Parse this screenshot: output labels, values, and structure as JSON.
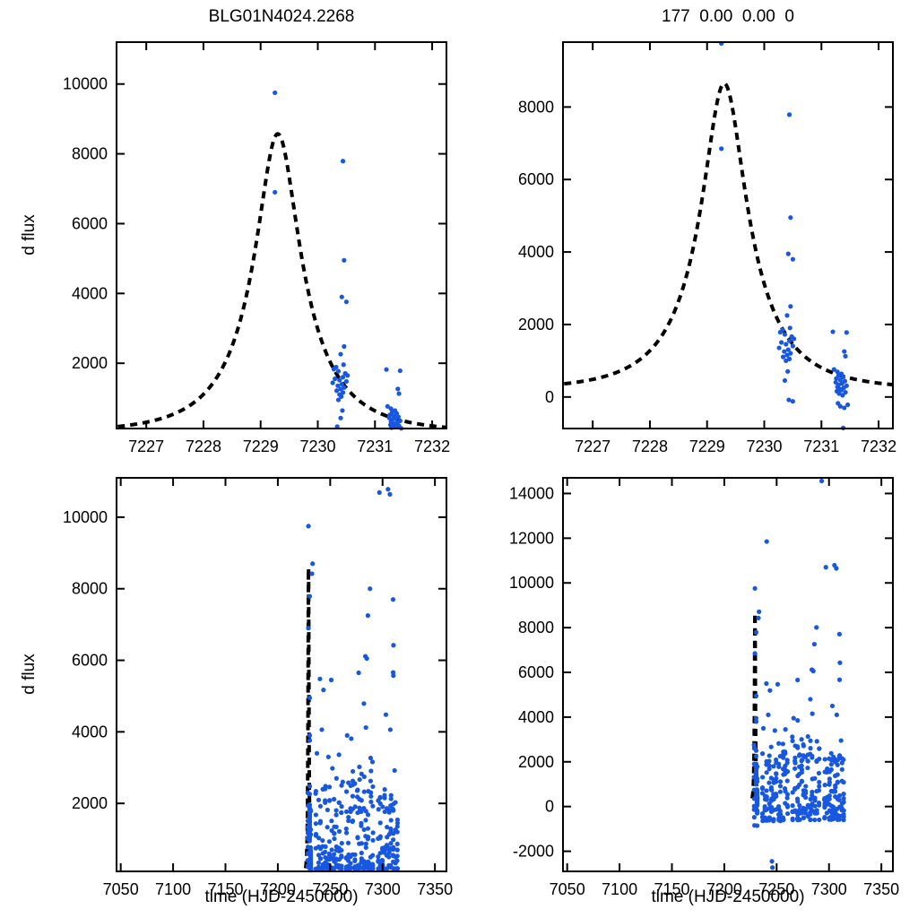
{
  "figure": {
    "background": "#ffffff",
    "titles": {
      "top_left": "BLG01N4024.2268",
      "top_right": "177  0.00  0.00  0"
    },
    "axis_labels": {
      "y": "d flux",
      "x": "time (HJD-2450000)"
    }
  },
  "chart_data": {
    "type": "scatter",
    "description": "Microlensing difference-flux light curve in a 2x2 panel figure. Top row: zoom on the event peak (HJD-2450000 ~7226.5-7232.3) with a dashed point-lens model curve peaking near 7229.3 at ~8600 d-flux. Bottom row: full season ~7046-7361; the model appears as a narrow dashed spike at ~7229. Left/right columns are two reductions of the same event.",
    "style": {
      "point_color": "#1857e0",
      "point_radius": 2.6,
      "curve_color": "#000000",
      "curve_width": 4,
      "curve_dash": "8 6",
      "frame_color": "#000000",
      "frame_width": 2,
      "tick_len": 9,
      "tick_font_size": 18
    },
    "panels": [
      {
        "id": "top-left",
        "position": "top-left",
        "x_range": [
          7226.48,
          7232.25
        ],
        "y_range": [
          130,
          11200
        ],
        "x_ticks": [
          7227,
          7228,
          7229,
          7230,
          7231,
          7232
        ],
        "y_ticks": [
          2000,
          4000,
          6000,
          8000,
          10000
        ],
        "model_curve": {
          "t0": 7229.3,
          "tE": 1.3,
          "u0": 0.3,
          "fs": 3498,
          "base": 20,
          "domain": [
            7226.5,
            7232.3
          ],
          "peak_flux": 8570
        },
        "points": [
          [
            7229.25,
            9750
          ],
          [
            7229.25,
            6900
          ],
          [
            7230.44,
            7790
          ],
          [
            7230.46,
            4950
          ],
          [
            7230.42,
            3900
          ],
          [
            7230.5,
            3760
          ],
          [
            7230.46,
            2480
          ],
          [
            7230.4,
            2260
          ],
          [
            7230.45,
            1960
          ],
          [
            7230.32,
            1890
          ],
          [
            7230.28,
            1830
          ],
          [
            7230.36,
            1770
          ],
          [
            7230.48,
            1710
          ],
          [
            7230.52,
            1650
          ],
          [
            7230.44,
            1600
          ],
          [
            7230.3,
            1555
          ],
          [
            7230.38,
            1515
          ],
          [
            7230.5,
            1480
          ],
          [
            7230.26,
            1440
          ],
          [
            7230.42,
            1400
          ],
          [
            7230.35,
            1355
          ],
          [
            7230.46,
            1305
          ],
          [
            7230.4,
            1260
          ],
          [
            7230.33,
            1215
          ],
          [
            7230.44,
            1160
          ],
          [
            7230.38,
            1105
          ],
          [
            7230.41,
            1045
          ],
          [
            7230.36,
            950
          ],
          [
            7230.43,
            645
          ],
          [
            7230.4,
            430
          ],
          [
            7230.34,
            185
          ],
          [
            7231.2,
            1820
          ],
          [
            7231.44,
            1785
          ],
          [
            7231.4,
            1265
          ],
          [
            7231.42,
            1130
          ],
          [
            7231.22,
            765
          ],
          [
            7231.28,
            700
          ],
          [
            7231.35,
            645
          ],
          [
            7231.3,
            600
          ],
          [
            7231.38,
            560
          ],
          [
            7231.26,
            520
          ],
          [
            7231.33,
            490
          ],
          [
            7231.41,
            462
          ],
          [
            7231.25,
            435
          ],
          [
            7231.36,
            408
          ],
          [
            7231.3,
            380
          ],
          [
            7231.44,
            352
          ],
          [
            7231.28,
            325
          ],
          [
            7231.39,
            300
          ],
          [
            7231.32,
            278
          ],
          [
            7231.35,
            255
          ],
          [
            7231.27,
            232
          ],
          [
            7231.42,
            210
          ],
          [
            7231.31,
            190
          ],
          [
            7231.37,
            170
          ],
          [
            7231.29,
            152
          ],
          [
            7231.46,
            135
          ]
        ],
        "clusters": []
      },
      {
        "id": "top-right",
        "position": "top-right",
        "x_range": [
          7226.48,
          7232.25
        ],
        "y_range": [
          -870,
          9790
        ],
        "x_ticks": [
          7227,
          7228,
          7229,
          7230,
          7231,
          7232
        ],
        "y_ticks": [
          0,
          2000,
          4000,
          6000,
          8000
        ],
        "model_curve": {
          "t0": 7229.3,
          "tE": 1.3,
          "u0": 0.3,
          "fs": 3457,
          "base": 200,
          "domain": [
            7226.5,
            7232.3
          ],
          "peak_flux": 8650
        },
        "points": [
          [
            7229.25,
            9755
          ],
          [
            7229.25,
            6850
          ],
          [
            7230.44,
            7790
          ],
          [
            7230.46,
            4950
          ],
          [
            7230.42,
            3950
          ],
          [
            7230.5,
            3800
          ],
          [
            7230.46,
            2500
          ],
          [
            7230.4,
            2250
          ],
          [
            7230.45,
            1905
          ],
          [
            7230.32,
            1850
          ],
          [
            7230.28,
            1785
          ],
          [
            7230.36,
            1725
          ],
          [
            7230.48,
            1665
          ],
          [
            7230.52,
            1605
          ],
          [
            7230.44,
            1550
          ],
          [
            7230.3,
            1505
          ],
          [
            7230.38,
            1455
          ],
          [
            7230.5,
            1405
          ],
          [
            7230.26,
            1355
          ],
          [
            7230.42,
            1305
          ],
          [
            7230.35,
            1255
          ],
          [
            7230.46,
            1205
          ],
          [
            7230.4,
            1155
          ],
          [
            7230.33,
            1105
          ],
          [
            7230.44,
            1050
          ],
          [
            7230.38,
            1000
          ],
          [
            7230.41,
            705
          ],
          [
            7230.36,
            455
          ],
          [
            7230.43,
            -80
          ],
          [
            7230.5,
            -120
          ],
          [
            7231.2,
            1800
          ],
          [
            7231.44,
            1780
          ],
          [
            7231.4,
            1255
          ],
          [
            7231.42,
            1125
          ],
          [
            7231.22,
            760
          ],
          [
            7231.28,
            695
          ],
          [
            7231.35,
            640
          ],
          [
            7231.3,
            592
          ],
          [
            7231.38,
            550
          ],
          [
            7231.26,
            510
          ],
          [
            7231.33,
            472
          ],
          [
            7231.41,
            438
          ],
          [
            7231.25,
            405
          ],
          [
            7231.36,
            372
          ],
          [
            7231.3,
            340
          ],
          [
            7231.44,
            310
          ],
          [
            7231.28,
            280
          ],
          [
            7231.39,
            252
          ],
          [
            7231.32,
            222
          ],
          [
            7231.35,
            192
          ],
          [
            7231.27,
            160
          ],
          [
            7231.42,
            128
          ],
          [
            7231.31,
            95
          ],
          [
            7231.37,
            48
          ],
          [
            7231.29,
            -175
          ],
          [
            7231.46,
            -215
          ],
          [
            7231.33,
            -258
          ],
          [
            7231.4,
            -300
          ],
          [
            7231.38,
            -855
          ]
        ],
        "clusters": []
      },
      {
        "id": "bottom-left",
        "position": "bottom-left",
        "x_range": [
          7046,
          7361
        ],
        "y_range": [
          100,
          11100
        ],
        "x_ticks": [
          7050,
          7100,
          7150,
          7200,
          7250,
          7300,
          7350
        ],
        "y_ticks": [
          2000,
          4000,
          6000,
          8000,
          10000
        ],
        "model_curve": {
          "t0": 7229.3,
          "tE": 1.3,
          "u0": 0.3,
          "fs": 3498,
          "base": 20,
          "domain": [
            7226.5,
            7232.3
          ],
          "peak_flux": 8570
        },
        "include_points_from": 0,
        "points": [
          [
            7232.6,
            8420
          ],
          [
            7233.2,
            8700
          ],
          [
            7237.3,
            3400
          ],
          [
            7240.2,
            5480
          ],
          [
            7242.0,
            4060
          ],
          [
            7243.6,
            5170
          ],
          [
            7248.3,
            3300
          ],
          [
            7251.0,
            5450
          ],
          [
            7252.1,
            2980
          ],
          [
            7256.0,
            2700
          ],
          [
            7258.4,
            3360
          ],
          [
            7262.0,
            2600
          ],
          [
            7266.2,
            3900
          ],
          [
            7270.1,
            3810
          ],
          [
            7277.2,
            5650
          ],
          [
            7282.2,
            4790
          ],
          [
            7283.6,
            6110
          ],
          [
            7284.1,
            4120
          ],
          [
            7285.0,
            6050
          ],
          [
            7286.0,
            7250
          ],
          [
            7288.0,
            8000
          ],
          [
            7288.6,
            3270
          ],
          [
            7290.4,
            3160
          ],
          [
            7297.0,
            10690
          ],
          [
            7303.2,
            4480
          ],
          [
            7305.2,
            10780
          ],
          [
            7307.0,
            10640
          ],
          [
            7307.4,
            4060
          ],
          [
            7310.0,
            7700
          ],
          [
            7310.4,
            6420
          ],
          [
            7310.1,
            5660
          ],
          [
            7310.3,
            5570
          ],
          [
            7311.5,
            2920
          ]
        ],
        "clusters": [
          {
            "seed": 11,
            "t0": 7228.7,
            "t1": 7228.7,
            "nights": 1,
            "per_night": 12,
            "y0": 180,
            "y1": 3150,
            "skew": 2.0
          },
          {
            "seed": 12,
            "t0": 7236.5,
            "t1": 7260.5,
            "nights": 12,
            "per_night": 8,
            "y0": 170,
            "y1": 2650,
            "skew": 2.2
          },
          {
            "seed": 13,
            "t0": 7265.5,
            "t1": 7290.5,
            "nights": 13,
            "per_night": 8,
            "y0": 170,
            "y1": 3100,
            "skew": 2.2
          },
          {
            "seed": 14,
            "t0": 7296.0,
            "t1": 7314.0,
            "nights": 10,
            "per_night": 8,
            "y0": 170,
            "y1": 2400,
            "skew": 2.2
          }
        ]
      },
      {
        "id": "bottom-right",
        "position": "bottom-right",
        "x_range": [
          7046,
          7361
        ],
        "y_range": [
          -2900,
          14700
        ],
        "x_ticks": [
          7050,
          7100,
          7150,
          7200,
          7250,
          7300,
          7350
        ],
        "y_ticks": [
          -2000,
          0,
          2000,
          4000,
          6000,
          8000,
          10000,
          12000,
          14000
        ],
        "model_curve": {
          "t0": 7229.3,
          "tE": 1.3,
          "u0": 0.3,
          "fs": 3457,
          "base": 200,
          "domain": [
            7226.5,
            7232.3
          ],
          "peak_flux": 8650
        },
        "include_points_from": 1,
        "points": [
          [
            7232.6,
            8430
          ],
          [
            7233.2,
            8710
          ],
          [
            7237.3,
            3500
          ],
          [
            7240.5,
            11850
          ],
          [
            7240.2,
            5500
          ],
          [
            7242.0,
            4100
          ],
          [
            7243.6,
            5190
          ],
          [
            7245.5,
            -2450
          ],
          [
            7246.0,
            -2730
          ],
          [
            7248.3,
            3400
          ],
          [
            7251.0,
            5470
          ],
          [
            7256.0,
            2800
          ],
          [
            7258.4,
            3450
          ],
          [
            7266.2,
            3950
          ],
          [
            7270.0,
            5660
          ],
          [
            7270.1,
            3850
          ],
          [
            7282.2,
            4800
          ],
          [
            7283.6,
            6120
          ],
          [
            7284.1,
            4150
          ],
          [
            7285.0,
            6060
          ],
          [
            7286.0,
            7260
          ],
          [
            7288.0,
            8010
          ],
          [
            7293.0,
            14560
          ],
          [
            7297.0,
            10700
          ],
          [
            7303.2,
            4500
          ],
          [
            7305.2,
            10790
          ],
          [
            7307.0,
            10650
          ],
          [
            7307.4,
            4100
          ],
          [
            7310.0,
            7710
          ],
          [
            7310.4,
            6430
          ],
          [
            7310.1,
            5670
          ],
          [
            7311.5,
            2950
          ]
        ],
        "clusters": [
          {
            "seed": 21,
            "t0": 7228.7,
            "t1": 7228.7,
            "nights": 1,
            "per_night": 12,
            "y0": -880,
            "y1": 3300,
            "skew": 1.6
          },
          {
            "seed": 22,
            "t0": 7236.5,
            "t1": 7260.5,
            "nights": 12,
            "per_night": 8,
            "y0": -650,
            "y1": 2900,
            "skew": 1.5
          },
          {
            "seed": 23,
            "t0": 7265.5,
            "t1": 7290.5,
            "nights": 13,
            "per_night": 8,
            "y0": -600,
            "y1": 3200,
            "skew": 1.5
          },
          {
            "seed": 24,
            "t0": 7296.0,
            "t1": 7314.0,
            "nights": 10,
            "per_night": 8,
            "y0": -600,
            "y1": 2500,
            "skew": 1.5
          }
        ]
      }
    ]
  }
}
